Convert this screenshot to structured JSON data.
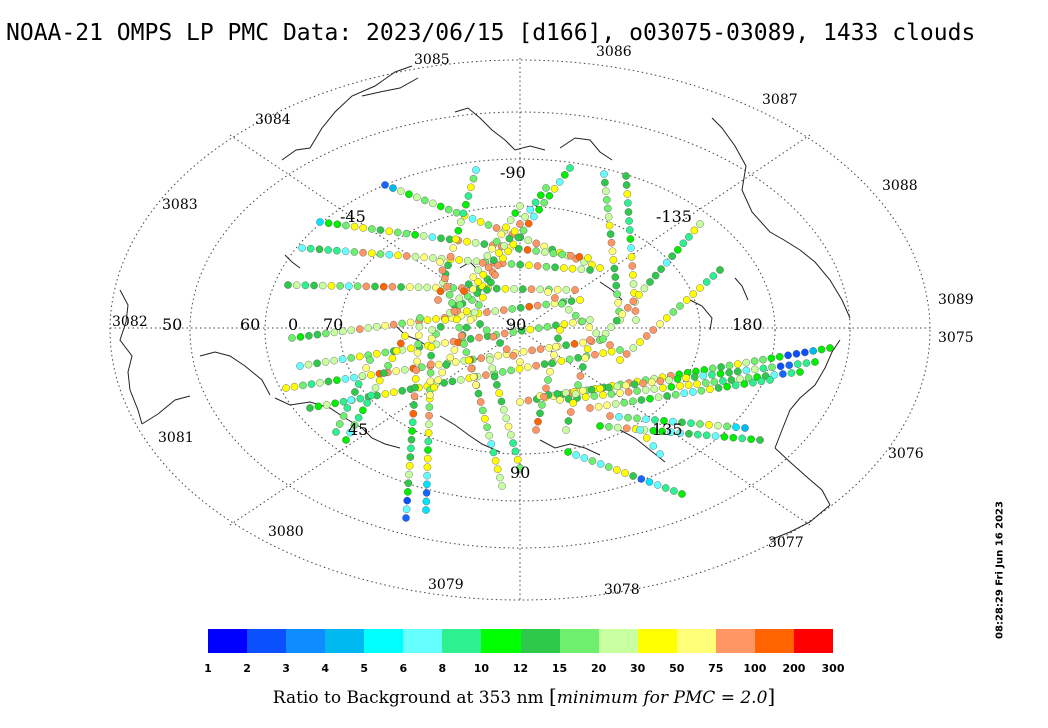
{
  "title": "NOAA-21 OMPS LP PMC Data: 2023/06/15 [d166], o03075-03089, 1433 clouds",
  "timestamp": "08:28:29 Fri Jun 16 2023",
  "orbit_labels": [
    "3075",
    "3076",
    "3077",
    "3078",
    "3079",
    "3080",
    "3081",
    "3082",
    "3083",
    "3084",
    "3085",
    "3086",
    "3087",
    "3088",
    "3089"
  ],
  "grid_labels": {
    "lat": [
      "50",
      "60",
      "70",
      "90"
    ],
    "lon": [
      "0",
      "-45",
      "-90",
      "-135",
      "180",
      "135",
      "90",
      "45"
    ]
  },
  "colorbar": {
    "label_main": "Ratio to Background at 353 nm",
    "label_bracket_open": "[",
    "label_note": "minimum for PMC = 2.0",
    "label_bracket_close": "]",
    "ticks": [
      "1",
      "2",
      "3",
      "4",
      "5",
      "6",
      "8",
      "10",
      "12",
      "15",
      "20",
      "30",
      "50",
      "75",
      "100",
      "200",
      "300"
    ],
    "colors": [
      "#0000ff",
      "#0a50ff",
      "#0f8cff",
      "#00b8f0",
      "#00ffff",
      "#66ffff",
      "#2df090",
      "#00ff00",
      "#2ec84b",
      "#6ef06e",
      "#c8ffa0",
      "#ffff00",
      "#ffff78",
      "#ff9664",
      "#ff6400",
      "#ff0000"
    ]
  },
  "pmc_palette": [
    "#1565ff",
    "#0a50ff",
    "#00b8f0",
    "#00e5ff",
    "#66ffff",
    "#2df090",
    "#00ee00",
    "#2ec84b",
    "#6ef06e",
    "#c8ffa0",
    "#ffff00",
    "#ffff78",
    "#ff9664",
    "#ff6400"
  ]
}
